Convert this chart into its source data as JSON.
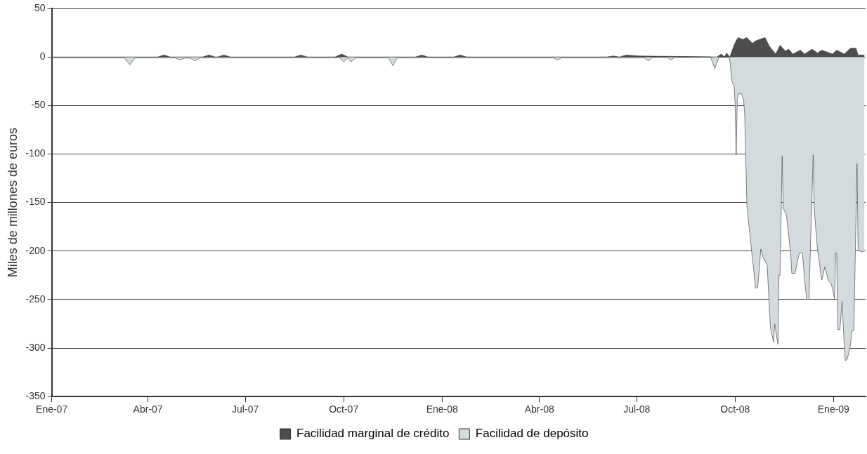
{
  "chart_data": {
    "type": "area",
    "ylabel": "Miles de millones de euros",
    "xlim": [
      "2007-01-01",
      "2009-01-31"
    ],
    "xticks": [
      {
        "value": "2007-01-01",
        "label": "Ene-07"
      },
      {
        "value": "2007-04-01",
        "label": "Abr-07"
      },
      {
        "value": "2007-07-01",
        "label": "Jul-07"
      },
      {
        "value": "2007-10-01",
        "label": "Oct-07"
      },
      {
        "value": "2008-01-01",
        "label": "Ene-08"
      },
      {
        "value": "2008-04-01",
        "label": "Abr-08"
      },
      {
        "value": "2008-07-01",
        "label": "Jul-08"
      },
      {
        "value": "2008-10-01",
        "label": "Oct-08"
      },
      {
        "value": "2009-01-01",
        "label": "Ene-09"
      }
    ],
    "ylim": [
      -350,
      50
    ],
    "yticks": [
      -350,
      -300,
      -250,
      -200,
      -150,
      -100,
      -50,
      0,
      50
    ],
    "grid": "y",
    "legend": "bottom",
    "marker": "none",
    "line_style": "solid",
    "series": [
      {
        "name": "Facilidad marginal de crédito",
        "color": "#4d4d4d",
        "x": [
          "2007-01-01",
          "2007-04-10",
          "2007-04-16",
          "2007-04-22",
          "2007-05-22",
          "2007-05-28",
          "2007-06-03",
          "2007-06-05",
          "2007-06-11",
          "2007-06-17",
          "2007-08-16",
          "2007-08-22",
          "2007-08-28",
          "2007-09-23",
          "2007-09-29",
          "2007-10-05",
          "2007-12-07",
          "2007-12-13",
          "2007-12-19",
          "2008-01-12",
          "2008-01-18",
          "2008-01-24",
          "2008-06-03",
          "2008-06-09",
          "2008-06-15",
          "2008-06-21",
          "2008-06-27",
          "2008-07-03",
          "2008-09-14",
          "2008-09-18",
          "2008-09-21",
          "2008-09-23",
          "2008-09-26",
          "2008-09-30",
          "2008-10-02",
          "2008-10-04",
          "2008-10-08",
          "2008-10-12",
          "2008-10-17",
          "2008-10-21",
          "2008-10-29",
          "2008-11-02",
          "2008-11-08",
          "2008-11-12",
          "2008-11-17",
          "2008-11-20",
          "2008-11-24",
          "2008-12-01",
          "2008-12-05",
          "2008-12-12",
          "2008-12-17",
          "2008-12-21",
          "2008-12-31",
          "2009-01-04",
          "2009-01-11",
          "2009-01-17",
          "2009-01-22",
          "2009-01-24",
          "2009-01-30"
        ],
        "values": [
          0,
          0,
          2,
          0,
          0,
          2,
          0,
          0,
          2,
          0,
          0,
          2,
          0,
          0,
          3,
          0,
          0,
          2,
          0,
          0,
          2,
          0,
          0,
          1,
          0,
          2,
          1.5,
          1,
          0,
          3,
          0,
          4,
          0,
          12,
          17,
          20,
          18,
          20,
          14,
          17,
          20,
          11,
          3,
          12,
          6,
          8,
          3,
          7,
          3,
          8,
          4,
          7,
          3,
          7,
          3,
          9,
          9,
          2,
          2
        ]
      },
      {
        "name": "Facilidad de depósito",
        "color": "#d4dbde",
        "x": [
          "2007-01-01",
          "2007-03-10",
          "2007-03-15",
          "2007-03-20",
          "2007-04-26",
          "2007-05-01",
          "2007-05-06",
          "2007-05-10",
          "2007-05-15",
          "2007-05-20",
          "2007-09-27",
          "2007-10-01",
          "2007-10-05",
          "2007-10-08",
          "2007-10-12",
          "2007-11-12",
          "2007-11-16",
          "2007-11-20",
          "2008-04-14",
          "2008-04-18",
          "2008-04-22",
          "2008-07-08",
          "2008-07-12",
          "2008-07-16",
          "2008-07-29",
          "2008-08-02",
          "2008-08-06",
          "2008-09-08",
          "2008-09-12",
          "2008-09-16",
          "2008-09-25",
          "2008-09-26",
          "2008-09-28",
          "2008-09-30",
          "2008-10-01",
          "2008-10-02",
          "2008-10-03",
          "2008-10-04",
          "2008-10-07",
          "2008-10-09",
          "2008-10-10",
          "2008-10-12",
          "2008-10-17",
          "2008-10-18",
          "2008-10-20",
          "2008-10-22",
          "2008-10-23",
          "2008-10-25",
          "2008-10-27",
          "2008-10-31",
          "2008-11-03",
          "2008-11-06",
          "2008-11-07",
          "2008-11-10",
          "2008-11-11",
          "2008-11-12",
          "2008-11-14",
          "2008-11-15",
          "2008-11-18",
          "2008-11-22",
          "2008-11-23",
          "2008-11-26",
          "2008-11-30",
          "2008-12-03",
          "2008-12-05",
          "2008-12-07",
          "2008-12-09",
          "2008-12-13",
          "2008-12-14",
          "2008-12-17",
          "2008-12-21",
          "2008-12-24",
          "2008-12-27",
          "2008-12-30",
          "2009-01-02",
          "2009-01-03",
          "2009-01-04",
          "2009-01-05",
          "2009-01-07",
          "2009-01-09",
          "2009-01-11",
          "2009-01-12",
          "2009-01-14",
          "2009-01-17",
          "2009-01-18",
          "2009-01-20",
          "2009-01-23",
          "2009-01-24",
          "2009-01-27",
          "2009-01-30"
        ],
        "values": [
          -1,
          -1,
          -8,
          -1,
          -1,
          -3,
          -1,
          -1,
          -4,
          -1,
          -1,
          -5,
          -1,
          -5,
          -1,
          -1,
          -9,
          -1,
          -1,
          -3,
          -1,
          -1,
          -4,
          0,
          0,
          -3,
          0,
          0,
          -12,
          0,
          0,
          -2,
          -25,
          -30,
          -48,
          -101,
          -45,
          -38,
          -38,
          -45,
          -60,
          -153,
          -206,
          -215,
          -238,
          -238,
          -227,
          -198,
          -206,
          -215,
          -279,
          -294,
          -275,
          -296,
          -225,
          -225,
          -102,
          -156,
          -163,
          -203,
          -223,
          -223,
          -202,
          -202,
          -231,
          -250,
          -250,
          -101,
          -158,
          -198,
          -230,
          -216,
          -230,
          -234,
          -249,
          -202,
          -202,
          -281,
          -281,
          -252,
          -296,
          -313,
          -311,
          -296,
          -282,
          -282,
          -110,
          -198,
          -201,
          -200
        ]
      }
    ]
  }
}
